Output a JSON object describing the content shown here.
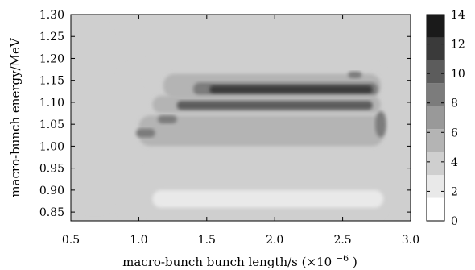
{
  "chart_data": {
    "type": "heatmap",
    "xlabel": "macro-bunch bunch length/s",
    "xlabel_multiplier": "(×10",
    "xlabel_exponent": "−6",
    "xlabel_close": ")",
    "ylabel": "macro-bunch energy/MeV",
    "xlim": [
      0.5,
      3.0
    ],
    "ylim": [
      0.83,
      1.3
    ],
    "xticks": [
      "0.5",
      "1.0",
      "1.5",
      "2.0",
      "2.5",
      "3.0"
    ],
    "xtick_values": [
      0.5,
      1.0,
      1.5,
      2.0,
      2.5,
      3.0
    ],
    "yticks": [
      "0.85",
      "0.90",
      "0.95",
      "1.00",
      "1.05",
      "1.10",
      "1.15",
      "1.20",
      "1.25",
      "1.30"
    ],
    "ytick_values": [
      0.85,
      0.9,
      0.95,
      1.0,
      1.05,
      1.1,
      1.15,
      1.2,
      1.25,
      1.3
    ],
    "colorbar": {
      "ticks": [
        "0",
        "2",
        "4",
        "6",
        "8",
        "10",
        "12",
        "14"
      ],
      "tick_values": [
        0,
        2,
        4,
        6,
        8,
        10,
        12,
        14
      ],
      "range": [
        0,
        14
      ],
      "colors": [
        "#ffffff",
        "#e9e9e9",
        "#cfcfcf",
        "#b4b4b4",
        "#999999",
        "#7c7c7c",
        "#5c5c5c",
        "#3a3a3a",
        "#1a1a1a"
      ]
    },
    "regions": [
      {
        "name": "background",
        "level": 3
      },
      {
        "name": "main-body",
        "level": 4,
        "x": [
          0.85,
          2.82
        ],
        "y": [
          0.835,
          1.185
        ]
      },
      {
        "name": "upper-shell",
        "level": 4,
        "x": [
          1.05,
          2.75
        ],
        "y": [
          1.13,
          1.205
        ]
      },
      {
        "name": "lower-band",
        "level": 3,
        "x": [
          1.05,
          2.82
        ],
        "y": [
          0.835,
          0.965
        ]
      },
      {
        "name": "band-1.15",
        "level": 6,
        "x": [
          1.18,
          2.78
        ],
        "y": [
          1.11,
          1.165
        ]
      },
      {
        "name": "band-1.13",
        "level": 8,
        "x": [
          1.4,
          2.76
        ],
        "y": [
          1.115,
          1.145
        ]
      },
      {
        "name": "band-1.13-core",
        "level": 12,
        "x": [
          1.52,
          2.72
        ],
        "y": [
          1.12,
          1.138
        ]
      },
      {
        "name": "band-1.09",
        "level": 6,
        "x": [
          1.1,
          2.78
        ],
        "y": [
          1.075,
          1.115
        ]
      },
      {
        "name": "band-1.09-core",
        "level": 10,
        "x": [
          1.28,
          2.72
        ],
        "y": [
          1.083,
          1.103
        ]
      },
      {
        "name": "mid-band",
        "level": 5,
        "x": [
          1.0,
          2.8
        ],
        "y": [
          1.0,
          1.07
        ]
      },
      {
        "name": "blob-1.06",
        "level": 8,
        "x": [
          1.14,
          1.28
        ],
        "y": [
          1.052,
          1.07
        ]
      },
      {
        "name": "blob-1.03",
        "level": 8,
        "x": [
          0.98,
          1.12
        ],
        "y": [
          1.02,
          1.04
        ]
      },
      {
        "name": "blob-2.60",
        "level": 9,
        "x": [
          2.54,
          2.64
        ],
        "y": [
          1.155,
          1.17
        ]
      },
      {
        "name": "right-edge",
        "level": 8,
        "x": [
          2.74,
          2.82
        ],
        "y": [
          1.02,
          1.08
        ]
      },
      {
        "name": "left-strip",
        "level": 4,
        "x": [
          0.55,
          0.8
        ],
        "y": [
          0.85,
          1.28
        ]
      },
      {
        "name": "right-strip",
        "level": 4,
        "x": [
          2.86,
          2.94
        ],
        "y": [
          0.84,
          1.29
        ]
      },
      {
        "name": "bottom-light",
        "level": 2,
        "x": [
          1.1,
          2.8
        ],
        "y": [
          0.86,
          0.9
        ]
      }
    ]
  }
}
